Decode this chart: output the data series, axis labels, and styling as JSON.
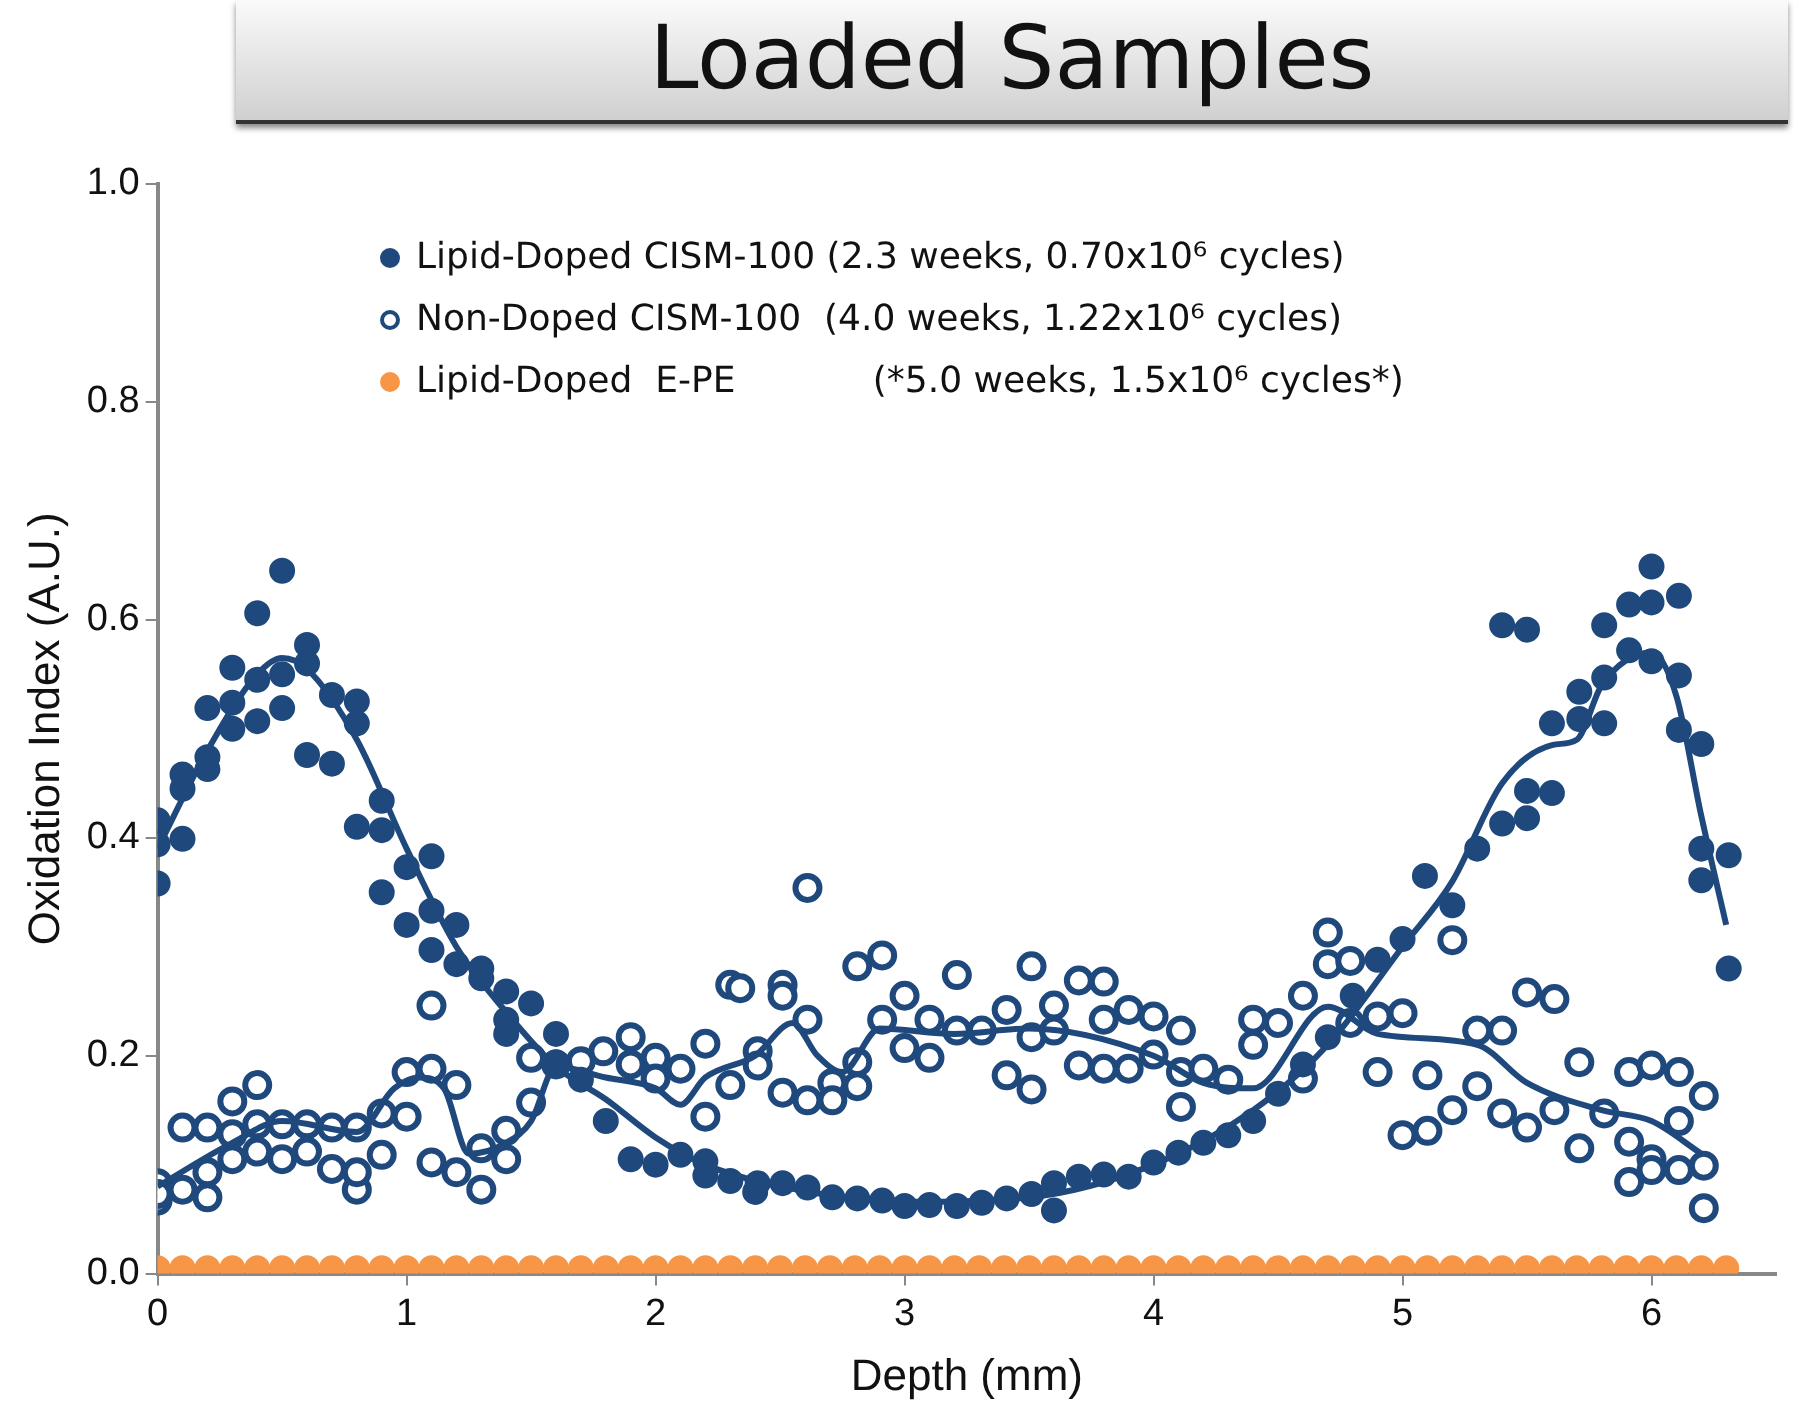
{
  "chart_data": {
    "type": "scatter",
    "title": "Loaded Samples",
    "xlabel": "Depth (mm)",
    "ylabel": "Oxidation Index (A.U.)",
    "xlim": [
      0,
      6.5
    ],
    "ylim": [
      0,
      1
    ],
    "xticks": [
      0,
      1,
      2,
      3,
      4,
      5,
      6
    ],
    "yticks": [
      {
        "value": 0,
        "label": "0.0"
      },
      {
        "value": 0.2,
        "label": "0.2"
      },
      {
        "value": 0.4,
        "label": "0.4"
      },
      {
        "value": 0.6,
        "label": "0.6"
      },
      {
        "value": 0.8,
        "label": "0.8"
      },
      {
        "value": 1,
        "label": "1.0"
      }
    ],
    "grid": false,
    "legend": "top right",
    "marker": "circle",
    "series": [
      {
        "name": "Lipid-Doped CISM-100 (2.3 weeks, 0.70x10⁶ cycles)",
        "color": "#1f497d",
        "x": [
          0,
          0,
          0,
          0.1,
          0.1,
          0.1,
          0.2,
          0.2,
          0.2,
          0.3,
          0.3,
          0.3,
          0.4,
          0.4,
          0.4,
          0.5,
          0.5,
          0.5,
          0.6,
          0.6,
          0.6,
          0.7,
          0.7,
          0.8,
          0.8,
          0.8,
          0.9,
          0.9,
          0.9,
          1.0,
          1.0,
          1.1,
          1.1,
          1.1,
          1.2,
          1.2,
          1.3,
          1.3,
          1.4,
          1.4,
          1.4,
          1.5,
          1.6,
          1.6,
          1.7,
          1.8,
          1.9,
          2.0,
          2.1,
          2.2,
          2.2,
          2.3,
          2.4,
          2.41,
          2.51,
          2.61,
          2.71,
          2.81,
          2.91,
          3.0,
          3.1,
          3.21,
          3.31,
          3.41,
          3.51,
          3.6,
          3.6,
          3.7,
          3.8,
          3.9,
          4.0,
          4.1,
          4.2,
          4.3,
          4.4,
          4.5,
          4.6,
          4.7,
          4.8,
          4.9,
          5.0,
          5.09,
          5.2,
          5.3,
          5.4,
          5.5,
          5.5,
          5.6,
          5.4,
          5.5,
          5.6,
          5.71,
          5.71,
          5.81,
          5.81,
          5.81,
          5.91,
          5.91,
          6.0,
          6.0,
          6.0,
          6.11,
          6.11,
          6.11,
          6.2,
          6.2,
          6.2,
          6.31,
          6.31
        ],
        "values": [
          0.358,
          0.394,
          0.416,
          0.399,
          0.445,
          0.458,
          0.463,
          0.474,
          0.519,
          0.5,
          0.524,
          0.556,
          0.507,
          0.545,
          0.606,
          0.645,
          0.55,
          0.519,
          0.577,
          0.56,
          0.476,
          0.531,
          0.468,
          0.525,
          0.505,
          0.41,
          0.434,
          0.407,
          0.35,
          0.373,
          0.32,
          0.383,
          0.333,
          0.297,
          0.32,
          0.284,
          0.28,
          0.271,
          0.259,
          0.233,
          0.22,
          0.248,
          0.22,
          0.194,
          0.178,
          0.14,
          0.105,
          0.1,
          0.109,
          0.103,
          0.09,
          0.085,
          0.075,
          0.083,
          0.083,
          0.079,
          0.07,
          0.069,
          0.067,
          0.062,
          0.063,
          0.062,
          0.065,
          0.069,
          0.073,
          0.083,
          0.058,
          0.089,
          0.091,
          0.089,
          0.102,
          0.111,
          0.12,
          0.127,
          0.14,
          0.165,
          0.192,
          0.217,
          0.255,
          0.288,
          0.307,
          0.365,
          0.338,
          0.39,
          0.413,
          0.418,
          0.443,
          0.441,
          0.595,
          0.591,
          0.505,
          0.509,
          0.534,
          0.505,
          0.547,
          0.595,
          0.572,
          0.614,
          0.562,
          0.616,
          0.649,
          0.622,
          0.549,
          0.499,
          0.486,
          0.39,
          0.361,
          0.384,
          0.28
        ]
      },
      {
        "name": "Non-Doped CISM-100  (4.0 weeks, 1.22x10⁶ cycles)",
        "color": "#1f497d",
        "marker": "circle-open",
        "x": [
          0,
          0,
          0,
          0.1,
          0.1,
          0.2,
          0.2,
          0.2,
          0.3,
          0.3,
          0.3,
          0.4,
          0.4,
          0.4,
          0.5,
          0.5,
          0.6,
          0.6,
          0.7,
          0.7,
          0.8,
          0.8,
          0.8,
          0.9,
          0.9,
          1.0,
          1.0,
          1.1,
          1.1,
          1.1,
          1.2,
          1.2,
          1.3,
          1.3,
          1.4,
          1.4,
          1.5,
          1.5,
          1.6,
          1.7,
          1.79,
          1.9,
          1.9,
          2.0,
          2.0,
          2.1,
          2.2,
          2.2,
          2.3,
          2.3,
          2.34,
          2.41,
          2.41,
          2.51,
          2.51,
          2.51,
          2.61,
          2.61,
          2.61,
          2.71,
          2.71,
          2.81,
          2.81,
          2.81,
          2.91,
          2.91,
          3.0,
          3.0,
          3.1,
          3.1,
          3.21,
          3.21,
          3.31,
          3.41,
          3.41,
          3.51,
          3.51,
          3.51,
          3.6,
          3.6,
          3.7,
          3.7,
          3.8,
          3.8,
          3.8,
          3.9,
          3.9,
          4.0,
          4.0,
          4.11,
          4.11,
          4.11,
          4.2,
          4.3,
          4.4,
          4.4,
          4.5,
          4.6,
          4.6,
          4.7,
          4.7,
          4.79,
          4.79,
          4.9,
          4.9,
          5.0,
          5.0,
          5.1,
          5.1,
          5.2,
          5.2,
          5.3,
          5.3,
          5.4,
          5.4,
          5.5,
          5.5,
          5.61,
          5.61,
          5.71,
          5.71,
          5.81,
          5.91,
          5.91,
          5.91,
          6.0,
          6.0,
          6.0,
          6.11,
          6.11,
          6.11,
          6.21,
          6.21,
          6.21
        ],
        "values": [
          0.083,
          0.067,
          0.073,
          0.134,
          0.077,
          0.134,
          0.093,
          0.07,
          0.158,
          0.105,
          0.128,
          0.173,
          0.112,
          0.137,
          0.137,
          0.105,
          0.137,
          0.112,
          0.134,
          0.096,
          0.134,
          0.077,
          0.093,
          0.147,
          0.109,
          0.185,
          0.144,
          0.188,
          0.102,
          0.246,
          0.173,
          0.093,
          0.115,
          0.077,
          0.131,
          0.105,
          0.157,
          0.198,
          0.192,
          0.195,
          0.204,
          0.217,
          0.192,
          0.198,
          0.179,
          0.188,
          0.211,
          0.144,
          0.265,
          0.173,
          0.262,
          0.204,
          0.191,
          0.265,
          0.255,
          0.166,
          0.159,
          0.354,
          0.233,
          0.175,
          0.159,
          0.194,
          0.172,
          0.282,
          0.292,
          0.233,
          0.255,
          0.207,
          0.233,
          0.198,
          0.274,
          0.223,
          0.223,
          0.242,
          0.182,
          0.282,
          0.169,
          0.217,
          0.246,
          0.223,
          0.269,
          0.191,
          0.268,
          0.233,
          0.188,
          0.242,
          0.188,
          0.236,
          0.201,
          0.223,
          0.185,
          0.153,
          0.188,
          0.178,
          0.233,
          0.21,
          0.23,
          0.255,
          0.179,
          0.313,
          0.284,
          0.287,
          0.23,
          0.236,
          0.185,
          0.239,
          0.127,
          0.182,
          0.131,
          0.306,
          0.15,
          0.223,
          0.172,
          0.223,
          0.147,
          0.258,
          0.134,
          0.252,
          0.15,
          0.194,
          0.115,
          0.147,
          0.185,
          0.121,
          0.084,
          0.191,
          0.105,
          0.095,
          0.185,
          0.14,
          0.095,
          0.163,
          0.099,
          0.06
        ]
      },
      {
        "name": "Lipid-Doped  E-PE            (*5.0 weeks, 1.5x10⁶ cycles*)",
        "color": "#f79646",
        "x": [
          0,
          0.1,
          0.2,
          0.3,
          0.4,
          0.5,
          0.6,
          0.7,
          0.8,
          0.9,
          1.0,
          1.1,
          1.2,
          1.3,
          1.4,
          1.5,
          1.6,
          1.7,
          1.8,
          1.9,
          2.0,
          2.1,
          2.2,
          2.3,
          2.4,
          2.5,
          2.6,
          2.7,
          2.8,
          2.9,
          3.0,
          3.1,
          3.2,
          3.3,
          3.4,
          3.5,
          3.6,
          3.7,
          3.8,
          3.9,
          4.0,
          4.1,
          4.2,
          4.3,
          4.4,
          4.5,
          4.6,
          4.7,
          4.8,
          4.9,
          5.0,
          5.1,
          5.2,
          5.3,
          5.4,
          5.5,
          5.6,
          5.7,
          5.8,
          5.9,
          6.0,
          6.1,
          6.2,
          6.3
        ],
        "values": [
          0.005,
          0.005,
          0.005,
          0.005,
          0.005,
          0.005,
          0.005,
          0.005,
          0.005,
          0.005,
          0.005,
          0.005,
          0.005,
          0.005,
          0.005,
          0.005,
          0.005,
          0.005,
          0.005,
          0.005,
          0.005,
          0.005,
          0.005,
          0.005,
          0.005,
          0.005,
          0.005,
          0.005,
          0.005,
          0.005,
          0.005,
          0.005,
          0.005,
          0.005,
          0.005,
          0.005,
          0.005,
          0.005,
          0.005,
          0.005,
          0.005,
          0.005,
          0.005,
          0.005,
          0.005,
          0.005,
          0.005,
          0.005,
          0.005,
          0.005,
          0.005,
          0.005,
          0.005,
          0.005,
          0.005,
          0.005,
          0.005,
          0.005,
          0.005,
          0.005,
          0.005,
          0.005,
          0.005,
          0.005
        ]
      },
      {
        "type": "line",
        "color": "#1f497d",
        "marker": "none",
        "x": [
          0,
          0.2,
          0.4,
          0.5,
          0.6,
          0.8,
          1.0,
          1.2,
          1.4,
          1.6,
          1.8,
          2.0,
          2.2,
          2.5,
          3.0,
          3.5,
          4.0,
          4.4,
          4.7,
          5.0,
          5.2,
          5.4,
          5.6,
          5.7,
          5.8,
          6.0,
          6.1,
          6.2,
          6.3
        ],
        "values": [
          0.39,
          0.48,
          0.55,
          0.565,
          0.555,
          0.49,
          0.39,
          0.3,
          0.24,
          0.19,
          0.16,
          0.125,
          0.1,
          0.08,
          0.066,
          0.07,
          0.1,
          0.15,
          0.21,
          0.3,
          0.36,
          0.45,
          0.485,
          0.49,
          0.54,
          0.57,
          0.53,
          0.42,
          0.32
        ]
      },
      {
        "type": "line",
        "color": "#1f497d",
        "marker": "none",
        "x": [
          0,
          0.3,
          0.5,
          0.8,
          0.95,
          1.05,
          1.15,
          1.25,
          1.4,
          1.5,
          1.6,
          1.8,
          2.0,
          2.1,
          2.2,
          2.4,
          2.55,
          2.65,
          2.75,
          2.9,
          3.2,
          3.5,
          4.0,
          4.2,
          4.4,
          4.7,
          4.9,
          5.3,
          5.5,
          5.8,
          6.0,
          6.2
        ],
        "values": [
          0.08,
          0.12,
          0.14,
          0.13,
          0.17,
          0.18,
          0.17,
          0.11,
          0.12,
          0.14,
          0.19,
          0.18,
          0.17,
          0.155,
          0.18,
          0.2,
          0.23,
          0.2,
          0.185,
          0.225,
          0.22,
          0.225,
          0.2,
          0.175,
          0.17,
          0.245,
          0.22,
          0.21,
          0.175,
          0.15,
          0.14,
          0.11
        ]
      }
    ]
  }
}
